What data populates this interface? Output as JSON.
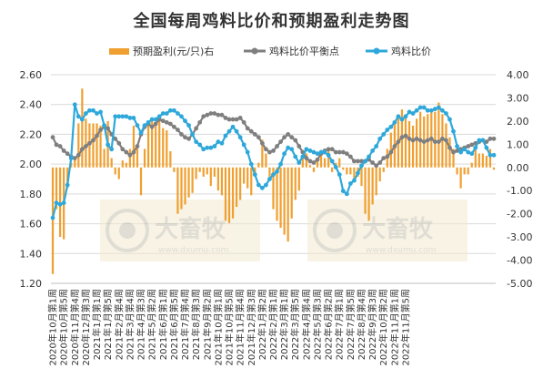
{
  "chart_data": {
    "type": "bar+line",
    "title": "全国每周鸡料比价和预期盈利走势图",
    "legend_position": "top",
    "grid": "horizontal",
    "left_axis": {
      "min": 1.2,
      "max": 2.6,
      "step": 0.2,
      "ticks": [
        "1.20",
        "1.40",
        "1.60",
        "1.80",
        "2.00",
        "2.20",
        "2.40",
        "2.60"
      ]
    },
    "right_axis": {
      "min": -5,
      "max": 4,
      "step": 1,
      "ticks": [
        "-5.00",
        "-4.00",
        "-3.00",
        "-2.00",
        "-1.00",
        "0.00",
        "1.00",
        "2.00",
        "3.00",
        "4.00"
      ]
    },
    "x_tick_labels": [
      "2020年10月第1周",
      "2020年10月第5周",
      "2020年11月第4周",
      "2020年12月第3周",
      "2021年1月第1周",
      "2021年1月第5周",
      "2021年2月第4周",
      "2021年3月第4周",
      "2021年4月第3周",
      "2021年5月第2周",
      "2021年6月第1周",
      "2021年6月第5周",
      "2021年7月第4周",
      "2021年8月第3周",
      "2021年9月第2周",
      "2021年10月第1周",
      "2021年10月第5周",
      "2021年11月第4周",
      "2021年12月第3周",
      "2022年1月第2周",
      "2022年2月第1周",
      "2022年3月第1周",
      "2022年3月第5周",
      "2022年4月第4周",
      "2022年5月第3周",
      "2022年6月第2周",
      "2022年7月第1周",
      "2022年7月第5周",
      "2022年8月第4周",
      "2022年9月第3周",
      "2022年10月第2周",
      "2022年11月第1周",
      "2022年11月第5周"
    ],
    "tick_every": 3,
    "series": [
      {
        "name": "预期盈利(元/只)右",
        "type": "bar",
        "axis": "right",
        "color": "#F0A030",
        "values": [
          -4.6,
          -1.8,
          -3.0,
          -3.1,
          -0.9,
          0.2,
          0.4,
          1.9,
          3.4,
          2.1,
          1.9,
          1.9,
          1.9,
          1.8,
          0.8,
          2.0,
          0.4,
          -0.3,
          -0.5,
          0.3,
          0.2,
          0.8,
          1.8,
          0.9,
          -1.2,
          0.8,
          1.9,
          2.0,
          1.8,
          2.2,
          1.7,
          1.6,
          0.7,
          -0.2,
          -2.0,
          -1.8,
          -1.6,
          -1.3,
          -1.1,
          -0.5,
          -0.2,
          -0.4,
          -0.3,
          -0.8,
          -0.4,
          -1.0,
          -1.2,
          -2.3,
          -2.4,
          -2.2,
          -1.7,
          -1.4,
          -0.7,
          -0.9,
          -1.2,
          -0.3,
          0.2,
          1.2,
          0.6,
          -0.4,
          -1.8,
          -2.3,
          -2.6,
          -2.9,
          -3.2,
          -2.2,
          -1.4,
          -1.0,
          0.4,
          0.6,
          0.1,
          -0.2,
          0.3,
          0.5,
          0.4,
          0.8,
          -0.2,
          0.2,
          0.4,
          -0.1,
          -0.3,
          -0.3,
          -0.6,
          -0.4,
          -0.8,
          -2.0,
          -2.3,
          -1.6,
          -1.2,
          -0.6,
          -0.2,
          0.8,
          1.5,
          1.9,
          2.2,
          2.5,
          2.2,
          2.0,
          1.8,
          2.1,
          2.4,
          2.2,
          2.3,
          2.5,
          2.4,
          2.8,
          2.3,
          1.9,
          1.3,
          0.8,
          -0.3,
          -0.9,
          -0.3,
          -0.3,
          0.2,
          0.9,
          0.6,
          0.6,
          0.5,
          0.8,
          -0.1
        ]
      },
      {
        "name": "鸡料比价平衡点",
        "type": "line",
        "axis": "left",
        "color": "#7F7F7F",
        "marker": "circle",
        "values": [
          2.18,
          2.13,
          2.12,
          2.09,
          2.07,
          2.05,
          2.04,
          2.06,
          2.1,
          2.12,
          2.14,
          2.16,
          2.19,
          2.23,
          2.25,
          2.24,
          2.2,
          2.17,
          2.14,
          2.1,
          2.08,
          2.06,
          2.08,
          2.12,
          2.2,
          2.25,
          2.27,
          2.25,
          2.27,
          2.3,
          2.29,
          2.28,
          2.27,
          2.25,
          2.23,
          2.2,
          2.18,
          2.17,
          2.2,
          2.24,
          2.28,
          2.32,
          2.33,
          2.34,
          2.34,
          2.33,
          2.33,
          2.31,
          2.3,
          2.3,
          2.3,
          2.31,
          2.28,
          2.24,
          2.22,
          2.2,
          2.18,
          2.14,
          2.1,
          2.08,
          2.09,
          2.12,
          2.15,
          2.18,
          2.2,
          2.18,
          2.16,
          2.12,
          2.08,
          2.04,
          2.02,
          2.01,
          2.03,
          2.07,
          2.09,
          2.1,
          2.1,
          2.08,
          2.08,
          2.08,
          2.07,
          2.05,
          2.02,
          2.02,
          2.02,
          2.02,
          2.03,
          2.01,
          1.99,
          2.01,
          2.04,
          2.05,
          2.08,
          2.12,
          2.15,
          2.18,
          2.19,
          2.17,
          2.16,
          2.17,
          2.16,
          2.15,
          2.16,
          2.17,
          2.15,
          2.15,
          2.17,
          2.16,
          2.11,
          2.08,
          2.09,
          2.1,
          2.11,
          2.12,
          2.13,
          2.14,
          2.15,
          2.16,
          2.15,
          2.17,
          2.17
        ]
      },
      {
        "name": "鸡料比价",
        "type": "line",
        "axis": "left",
        "color": "#2EA8DA",
        "marker": "circle",
        "values": [
          1.64,
          1.74,
          1.73,
          1.74,
          1.86,
          2.04,
          2.4,
          2.32,
          2.3,
          2.34,
          2.36,
          2.36,
          2.34,
          2.35,
          2.26,
          2.13,
          2.1,
          2.32,
          2.32,
          2.32,
          2.32,
          2.31,
          2.31,
          2.26,
          2.21,
          2.26,
          2.28,
          2.3,
          2.3,
          2.32,
          2.34,
          2.34,
          2.36,
          2.36,
          2.34,
          2.32,
          2.29,
          2.26,
          2.2,
          2.15,
          2.13,
          2.1,
          2.11,
          2.11,
          2.12,
          2.15,
          2.14,
          2.19,
          2.22,
          2.25,
          2.22,
          2.18,
          2.13,
          2.08,
          2.0,
          1.93,
          1.86,
          1.84,
          1.86,
          1.9,
          1.93,
          1.95,
          2.0,
          2.07,
          2.11,
          2.1,
          2.05,
          2.01,
          2.05,
          2.1,
          2.09,
          2.08,
          2.07,
          2.08,
          2.08,
          2.06,
          2.02,
          1.98,
          1.93,
          1.82,
          1.8,
          1.87,
          1.89,
          1.94,
          1.99,
          2.02,
          2.05,
          2.09,
          2.12,
          2.17,
          2.2,
          2.23,
          2.25,
          2.28,
          2.32,
          2.3,
          2.32,
          2.35,
          2.34,
          2.36,
          2.38,
          2.38,
          2.36,
          2.36,
          2.37,
          2.38,
          2.36,
          2.34,
          2.3,
          2.22,
          2.12,
          2.08,
          2.1,
          2.08,
          2.07,
          2.11,
          2.16,
          2.16,
          2.11,
          2.06,
          2.06
        ]
      }
    ]
  },
  "watermark": {
    "brand_text": "大畜牧",
    "url_text": "www.dxumu.com"
  }
}
